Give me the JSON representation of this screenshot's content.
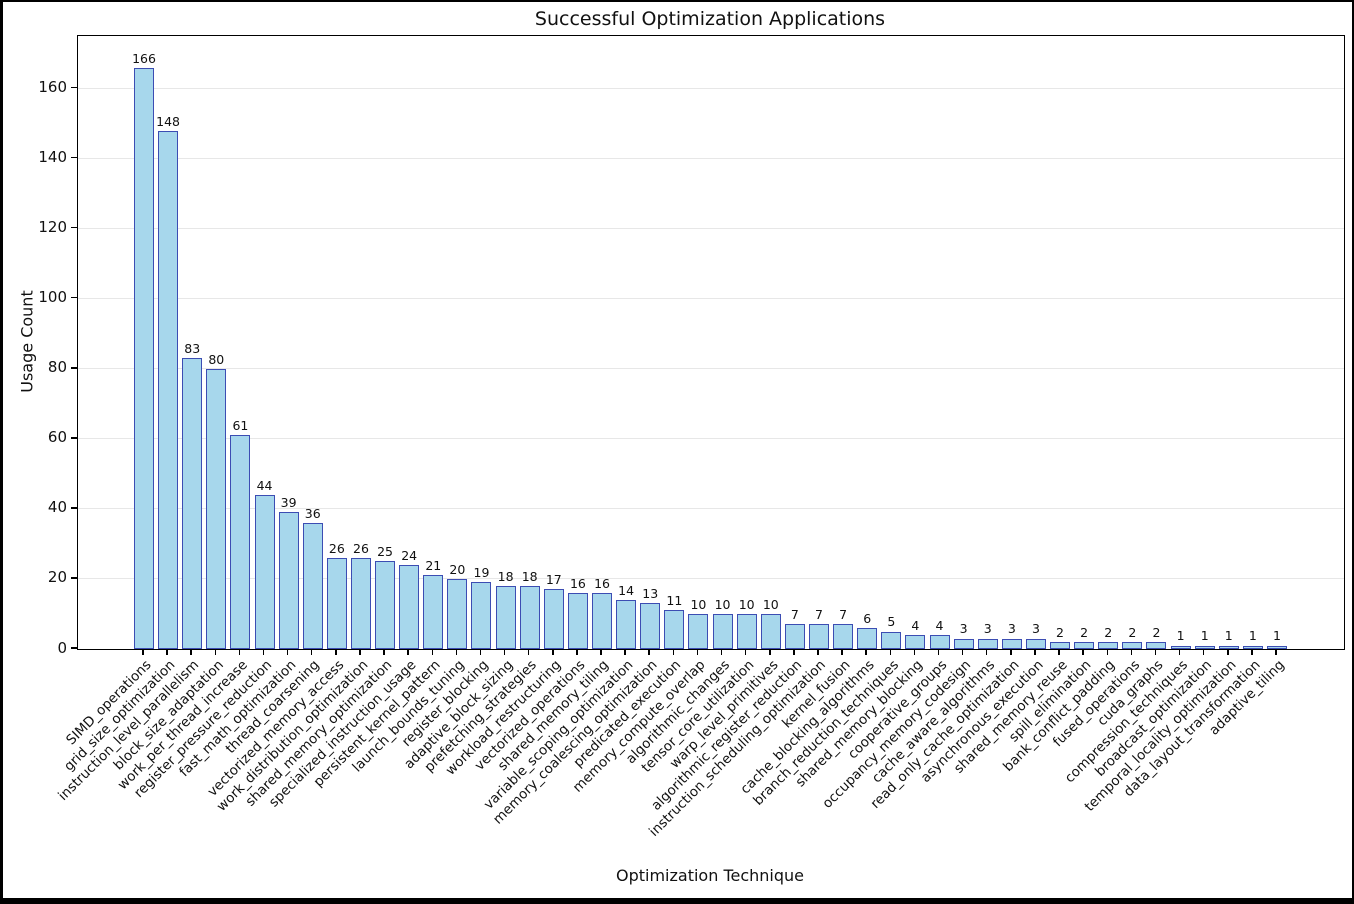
{
  "chart_data": {
    "type": "bar",
    "title": "Successful Optimization Applications",
    "xlabel": "Optimization Technique",
    "ylabel": "Usage Count",
    "categories": [
      "SIMD_operations",
      "grid_size_optimization",
      "instruction_level_parallelism",
      "block_size_adaptation",
      "work_per_thread_increase",
      "register_pressure_reduction",
      "fast_math_optimization",
      "thread_coarsening",
      "vectorized_memory_access",
      "work_distribution_optimization",
      "shared_memory_optimization",
      "specialized_instruction_usage",
      "persistent_kernel_pattern",
      "launch_bounds_tuning",
      "register_blocking",
      "adaptive_block_sizing",
      "prefetching_strategies",
      "workload_restructuring",
      "vectorized_operations",
      "shared_memory_tiling",
      "variable_scoping_optimization",
      "memory_coalescing_optimization",
      "predicated_execution",
      "memory_compute_overlap",
      "algorithmic_changes",
      "tensor_core_utilization",
      "warp_level_primitives",
      "algorithmic_register_reduction",
      "instruction_scheduling_optimization",
      "kernel_fusion",
      "cache_blocking_algorithms",
      "branch_reduction_techniques",
      "shared_memory_blocking",
      "cooperative_groups",
      "occupancy_memory_codesign",
      "cache_aware_algorithms",
      "read_only_cache_optimization",
      "asynchronous_execution",
      "shared_memory_reuse",
      "spill_elimination",
      "bank_conflict_padding",
      "fused_operations",
      "cuda_graphs",
      "compression_techniques",
      "broadcast_optimization",
      "temporal_locality_optimization",
      "data_layout_transformation",
      "adaptive_tiling"
    ],
    "values": [
      166,
      148,
      83,
      80,
      61,
      44,
      39,
      36,
      26,
      26,
      25,
      24,
      21,
      20,
      19,
      18,
      18,
      17,
      16,
      16,
      14,
      13,
      11,
      10,
      10,
      10,
      10,
      7,
      7,
      7,
      6,
      5,
      4,
      4,
      3,
      3,
      3,
      3,
      2,
      2,
      2,
      2,
      2,
      1,
      1,
      1,
      1,
      1
    ],
    "bar_value_labels": true,
    "ylim": [
      0,
      175
    ],
    "yticks": [
      0,
      20,
      40,
      60,
      80,
      100,
      120,
      140,
      160
    ],
    "grid": "horizontal",
    "legend": "none",
    "colors": {
      "bar_fill": "#a7d7ec",
      "bar_edge": "#3c4db3",
      "gridline": "#e7e7e7",
      "text": "#111111",
      "frame": "#000000"
    }
  }
}
